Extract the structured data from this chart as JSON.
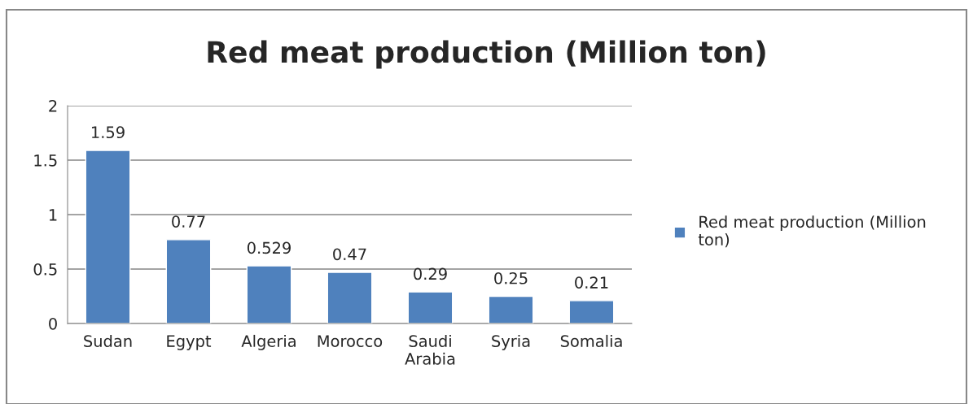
{
  "chart_data": {
    "type": "bar",
    "title": "Red meat production (Million ton)",
    "categories": [
      "Sudan",
      "Egypt",
      "Algeria",
      "Morocco",
      "Saudi Arabia",
      "Syria",
      "Somalia"
    ],
    "series": [
      {
        "name": "Red meat production (Million ton)",
        "color": "#4f81bd",
        "values": [
          1.59,
          0.77,
          0.529,
          0.47,
          0.29,
          0.25,
          0.21
        ]
      }
    ],
    "ylim": [
      0,
      2
    ],
    "yticks": [
      0,
      0.5,
      1,
      1.5,
      2
    ],
    "grid": "y",
    "legend": "right",
    "data_labels": true
  }
}
